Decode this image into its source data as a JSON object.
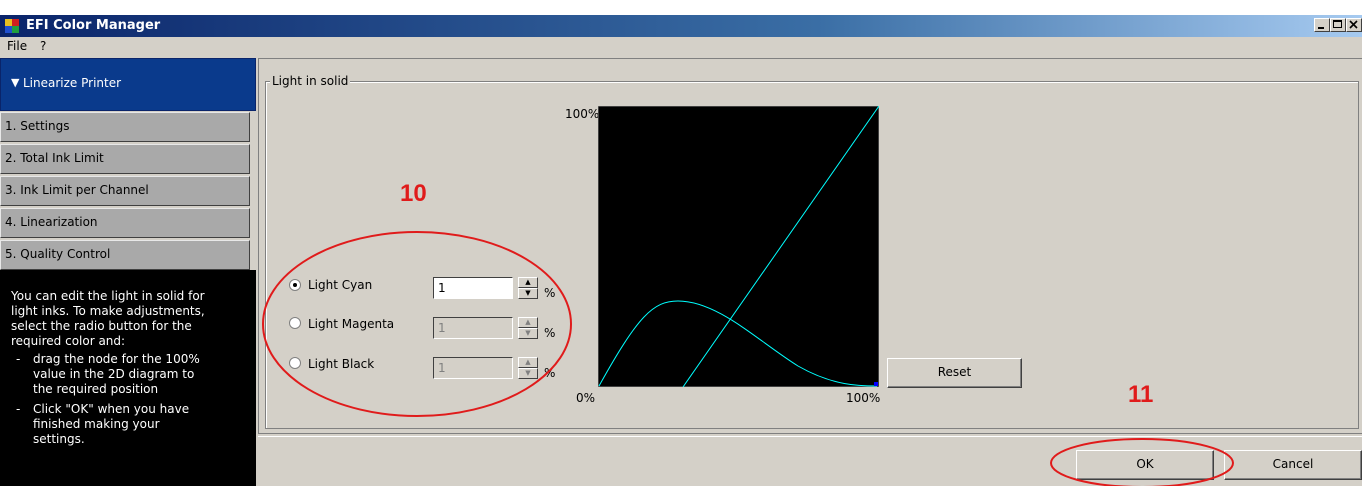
{
  "window": {
    "title": "EFI Color Manager"
  },
  "menu": {
    "file": "File",
    "help": "?"
  },
  "sidebar": {
    "header": "Linearize Printer",
    "steps": [
      {
        "label": "1. Settings"
      },
      {
        "label": "2. Total Ink Limit"
      },
      {
        "label": "3. Ink Limit per Channel"
      },
      {
        "label": "4. Linearization"
      },
      {
        "label": "5. Quality Control"
      }
    ],
    "help": {
      "intro": [
        "You can edit the light in solid for",
        "light inks. To make adjustments,",
        "select the radio button for the",
        "required color and:"
      ],
      "bullet1_dash": "-",
      "bullet1": [
        "drag the node for the 100%",
        "value in the 2D diagram to",
        "the required position"
      ],
      "bullet2_dash": "-",
      "bullet2": [
        "Click \"OK\" when you have",
        "finished making your",
        "settings."
      ]
    }
  },
  "group": {
    "title": "Light in solid"
  },
  "inks": [
    {
      "label": "Light Cyan",
      "value": "1",
      "unit": "%",
      "selected": true,
      "enabled": true
    },
    {
      "label": "Light Magenta",
      "value": "1",
      "unit": "%",
      "selected": false,
      "enabled": false
    },
    {
      "label": "Light Black",
      "value": "1",
      "unit": "%",
      "selected": false,
      "enabled": false
    }
  ],
  "graph": {
    "y_top_label": "100%",
    "x_left_label": "0%",
    "x_right_label": "100%",
    "line_color": "#00ffff",
    "background": "#000000"
  },
  "buttons": {
    "reset": "Reset",
    "ok": "OK",
    "cancel": "Cancel"
  },
  "annotations": {
    "first": "10",
    "second": "11",
    "color": "#e01b1b"
  }
}
